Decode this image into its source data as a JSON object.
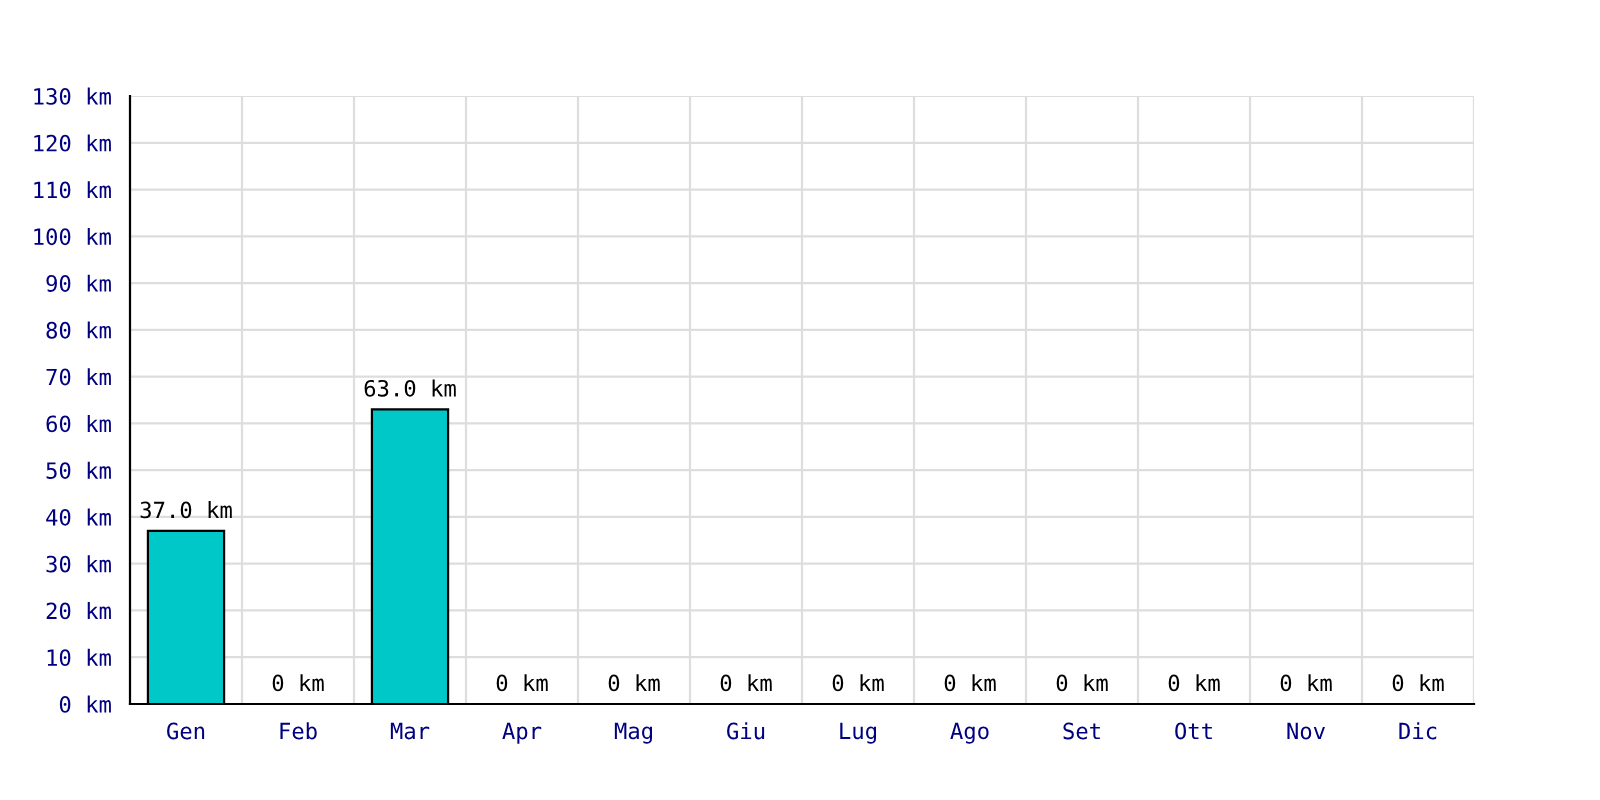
{
  "chart_data": {
    "type": "bar",
    "categories": [
      "Gen",
      "Feb",
      "Mar",
      "Apr",
      "Mag",
      "Giu",
      "Lug",
      "Ago",
      "Set",
      "Ott",
      "Nov",
      "Dic"
    ],
    "values": [
      37.0,
      0,
      63.0,
      0,
      0,
      0,
      0,
      0,
      0,
      0,
      0,
      0
    ],
    "value_labels": [
      "37.0 km",
      "0 km",
      "63.0 km",
      "0 km",
      "0 km",
      "0 km",
      "0 km",
      "0 km",
      "0 km",
      "0 km",
      "0 km",
      "0 km"
    ],
    "color": "#00c8c8",
    "ylim": [
      0,
      130
    ],
    "yticks": [
      {
        "value": 0,
        "label": "0 km"
      },
      {
        "value": 10,
        "label": "10 km"
      },
      {
        "value": 20,
        "label": "20 km"
      },
      {
        "value": 30,
        "label": "30 km"
      },
      {
        "value": 40,
        "label": "40 km"
      },
      {
        "value": 50,
        "label": "50 km"
      },
      {
        "value": 60,
        "label": "60 km"
      },
      {
        "value": 70,
        "label": "70 km"
      },
      {
        "value": 80,
        "label": "80 km"
      },
      {
        "value": 90,
        "label": "90 km"
      },
      {
        "value": 100,
        "label": "100 km"
      },
      {
        "value": 110,
        "label": "110 km"
      },
      {
        "value": 120,
        "label": "120 km"
      },
      {
        "value": 130,
        "label": "130 km"
      }
    ],
    "grid": true
  }
}
